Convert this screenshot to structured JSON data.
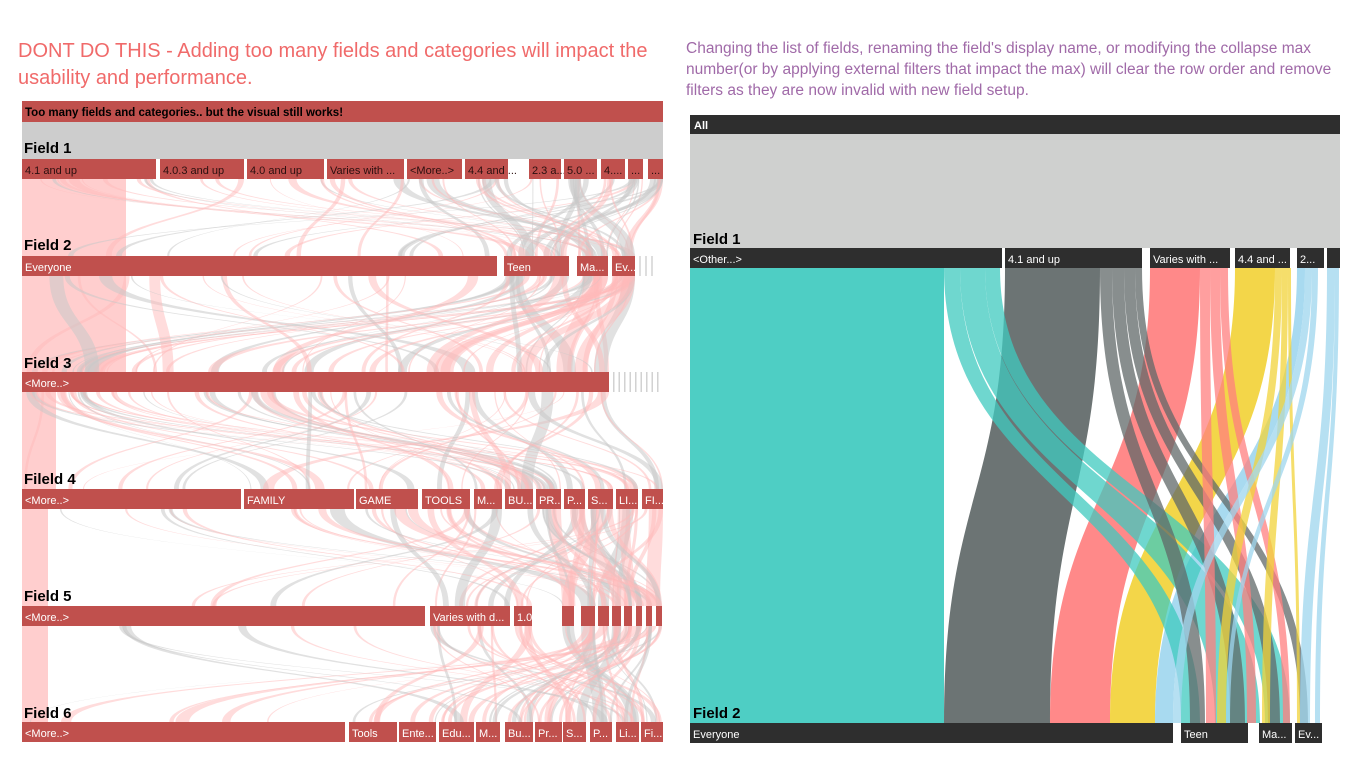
{
  "left_panel": {
    "heading": "DONT DO THIS - Adding too many fields and categories will impact the usability and performance.",
    "banner": "Too many fields and categories.. but the visual still works!"
  },
  "right_panel": {
    "heading": "Changing the list of fields, renaming the field's display name, or modifying the collapse max number(or by applying external filters that impact the max) will clear the row order and remove filters as they are now invalid with new field setup."
  },
  "colors": {
    "left_node": "#c0504d",
    "left_flow_pink": "#ffb9b9",
    "left_flow_gray": "#c8c8c8",
    "right_node": "#2e2e2e",
    "right_root_flow": "#cfd0cf",
    "teal": "#3fcabf",
    "dark_gray": "#606868",
    "salmon": "#ff7f7f",
    "yellow": "#f2d33a",
    "light_blue": "#9ed6ee"
  },
  "chart_data": [
    {
      "type": "sankey",
      "title": "Too many fields and categories.. but the visual still works!",
      "levels": [
        {
          "name": "Field 1",
          "nodes": [
            "4.1 and up",
            "4.0.3 and up",
            "4.0 and up",
            "Varies with ...",
            "<More..>",
            "4.4 and ...",
            "2.3 a...",
            "5.0 ...",
            "4....",
            "...",
            "..."
          ]
        },
        {
          "name": "Field 2",
          "nodes": [
            "Everyone",
            "Teen",
            "Ma...",
            "Ev..."
          ]
        },
        {
          "name": "Field 3",
          "nodes": [
            "<More..>"
          ]
        },
        {
          "name": "Fileld 4",
          "nodes": [
            "<More..>",
            "FAMILY",
            "GAME",
            "TOOLS",
            "M...",
            "BU...",
            "PR...",
            "P...",
            "S...",
            "LI...",
            "FI..."
          ]
        },
        {
          "name": "Field 5",
          "nodes": [
            "<More..>",
            "Varies with d...",
            "1.0",
            "..."
          ]
        },
        {
          "name": "Field 6",
          "nodes": [
            "<More..>",
            "Tools",
            "Ente...",
            "Edu...",
            "M...",
            "Bu...",
            "Pr...",
            "S...",
            "P...",
            "Li...",
            "Fi..."
          ]
        }
      ]
    },
    {
      "type": "sankey",
      "root": "All",
      "levels": [
        {
          "name": "Field 1",
          "nodes": [
            "<Other...>",
            "4.1 and up",
            "Varies with ...",
            "4.4 and ...",
            "2...",
            ""
          ]
        },
        {
          "name": "Field 2",
          "nodes": [
            "Everyone",
            "Teen",
            "Ma...",
            "Ev..."
          ]
        }
      ]
    }
  ]
}
